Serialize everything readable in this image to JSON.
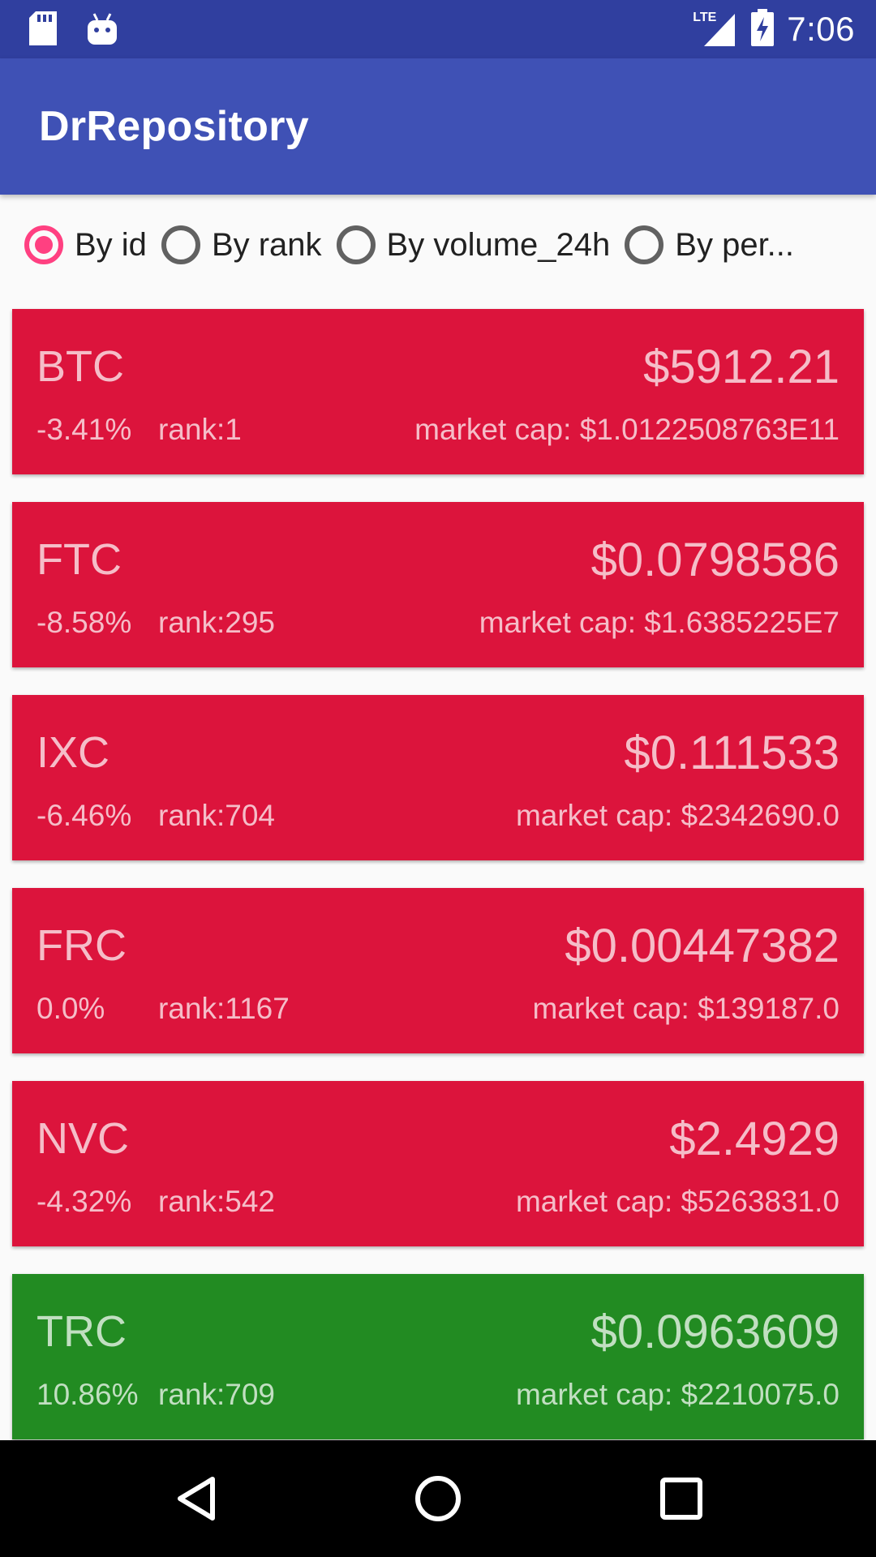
{
  "status_bar": {
    "time": "7:06",
    "network_label": "LTE",
    "icons": [
      "sd-card-icon",
      "android-icon",
      "lte-signal-icon",
      "battery-charging-icon"
    ]
  },
  "app_bar": {
    "title": "DrRepository"
  },
  "sort_options": [
    {
      "label": "By id",
      "checked": true
    },
    {
      "label": "By rank",
      "checked": false
    },
    {
      "label": "By volume_24h",
      "checked": false
    },
    {
      "label": "By per...",
      "checked": false
    }
  ],
  "colors": {
    "status_bar": "#303f9f",
    "primary": "#3f51b5",
    "accent": "#ff4081",
    "negative_card": "#dc143c",
    "positive_card": "#228b22"
  },
  "coins": [
    {
      "symbol": "BTC",
      "price": "$5912.21",
      "change": "-3.41%",
      "rank": "rank:1",
      "market_cap": "market cap: $1.0122508763E11",
      "trend": "down"
    },
    {
      "symbol": "FTC",
      "price": "$0.0798586",
      "change": "-8.58%",
      "rank": "rank:295",
      "market_cap": "market cap: $1.6385225E7",
      "trend": "down"
    },
    {
      "symbol": "IXC",
      "price": "$0.111533",
      "change": "-6.46%",
      "rank": "rank:704",
      "market_cap": "market cap: $2342690.0",
      "trend": "down"
    },
    {
      "symbol": "FRC",
      "price": "$0.00447382",
      "change": "0.0%",
      "rank": "rank:1167",
      "market_cap": "market cap: $139187.0",
      "trend": "down"
    },
    {
      "symbol": "NVC",
      "price": "$2.4929",
      "change": "-4.32%",
      "rank": "rank:542",
      "market_cap": "market cap: $5263831.0",
      "trend": "down"
    },
    {
      "symbol": "TRC",
      "price": "$0.0963609",
      "change": "10.86%",
      "rank": "rank:709",
      "market_cap": "market cap: $2210075.0",
      "trend": "up"
    }
  ],
  "nav_bar": {
    "buttons": [
      "back-icon",
      "home-icon",
      "recents-icon"
    ]
  }
}
